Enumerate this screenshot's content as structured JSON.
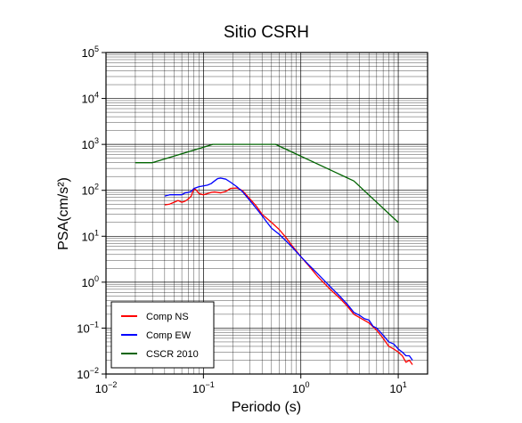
{
  "chart_data": {
    "type": "line",
    "title": "Sitio CSRH",
    "xlabel": "Periodo (s)",
    "ylabel": "PSA(cm/s²)",
    "x_scale": "log",
    "y_scale": "log",
    "xlim": [
      0.01,
      20
    ],
    "ylim": [
      0.01,
      100000
    ],
    "grid": true,
    "legend_position": "bottom-left",
    "x_ticks": [
      {
        "base": "10",
        "exp": "−2"
      },
      {
        "base": "10",
        "exp": "−1"
      },
      {
        "base": "10",
        "exp": "0"
      },
      {
        "base": "10",
        "exp": "1"
      }
    ],
    "y_ticks": [
      {
        "base": "10",
        "exp": "−2"
      },
      {
        "base": "10",
        "exp": "−1"
      },
      {
        "base": "10",
        "exp": "0"
      },
      {
        "base": "10",
        "exp": "1"
      },
      {
        "base": "10",
        "exp": "2"
      },
      {
        "base": "10",
        "exp": "3"
      },
      {
        "base": "10",
        "exp": "4"
      },
      {
        "base": "10",
        "exp": "5"
      }
    ],
    "series": [
      {
        "name": "Comp NS",
        "color": "#ff0000",
        "points": [
          [
            0.04,
            48
          ],
          [
            0.045,
            50
          ],
          [
            0.05,
            55
          ],
          [
            0.055,
            60
          ],
          [
            0.06,
            55
          ],
          [
            0.065,
            58
          ],
          [
            0.07,
            65
          ],
          [
            0.075,
            75
          ],
          [
            0.08,
            110
          ],
          [
            0.085,
            100
          ],
          [
            0.09,
            85
          ],
          [
            0.1,
            80
          ],
          [
            0.11,
            85
          ],
          [
            0.12,
            90
          ],
          [
            0.13,
            92
          ],
          [
            0.15,
            88
          ],
          [
            0.17,
            95
          ],
          [
            0.19,
            110
          ],
          [
            0.22,
            112
          ],
          [
            0.25,
            100
          ],
          [
            0.3,
            65
          ],
          [
            0.35,
            45
          ],
          [
            0.4,
            30
          ],
          [
            0.5,
            20
          ],
          [
            0.6,
            14
          ],
          [
            0.7,
            9.5
          ],
          [
            0.8,
            6.5
          ],
          [
            1.0,
            3.6
          ],
          [
            1.2,
            2.3
          ],
          [
            1.5,
            1.3
          ],
          [
            2.0,
            0.7
          ],
          [
            2.5,
            0.45
          ],
          [
            3.0,
            0.3
          ],
          [
            3.5,
            0.2
          ],
          [
            4.0,
            0.17
          ],
          [
            5.0,
            0.13
          ],
          [
            6.0,
            0.09
          ],
          [
            7.0,
            0.06
          ],
          [
            8.0,
            0.04
          ],
          [
            9.0,
            0.035
          ],
          [
            10.0,
            0.03
          ],
          [
            11.0,
            0.025
          ],
          [
            12.0,
            0.018
          ],
          [
            13.0,
            0.02
          ],
          [
            14.0,
            0.016
          ]
        ]
      },
      {
        "name": "Comp EW",
        "color": "#0000ff",
        "points": [
          [
            0.04,
            75
          ],
          [
            0.045,
            80
          ],
          [
            0.05,
            80
          ],
          [
            0.055,
            80
          ],
          [
            0.06,
            80
          ],
          [
            0.065,
            88
          ],
          [
            0.07,
            90
          ],
          [
            0.075,
            95
          ],
          [
            0.08,
            110
          ],
          [
            0.09,
            120
          ],
          [
            0.1,
            125
          ],
          [
            0.11,
            130
          ],
          [
            0.12,
            140
          ],
          [
            0.13,
            160
          ],
          [
            0.14,
            180
          ],
          [
            0.15,
            185
          ],
          [
            0.17,
            175
          ],
          [
            0.19,
            150
          ],
          [
            0.22,
            120
          ],
          [
            0.25,
            95
          ],
          [
            0.3,
            60
          ],
          [
            0.35,
            40
          ],
          [
            0.4,
            28
          ],
          [
            0.45,
            20
          ],
          [
            0.5,
            15
          ],
          [
            0.6,
            11
          ],
          [
            0.7,
            8
          ],
          [
            0.8,
            6
          ],
          [
            1.0,
            3.6
          ],
          [
            1.2,
            2.4
          ],
          [
            1.5,
            1.5
          ],
          [
            2.0,
            0.8
          ],
          [
            2.5,
            0.5
          ],
          [
            3.0,
            0.33
          ],
          [
            3.5,
            0.22
          ],
          [
            4.0,
            0.19
          ],
          [
            4.5,
            0.16
          ],
          [
            5.0,
            0.15
          ],
          [
            5.5,
            0.11
          ],
          [
            6.0,
            0.1
          ],
          [
            7.0,
            0.07
          ],
          [
            8.0,
            0.05
          ],
          [
            9.0,
            0.045
          ],
          [
            10.0,
            0.035
          ],
          [
            11.0,
            0.03
          ],
          [
            12.0,
            0.025
          ],
          [
            13.0,
            0.025
          ],
          [
            14.0,
            0.02
          ]
        ]
      },
      {
        "name": "CSCR 2010",
        "color": "#006400",
        "points": [
          [
            0.02,
            400
          ],
          [
            0.03,
            400
          ],
          [
            0.125,
            1000
          ],
          [
            0.55,
            1000
          ],
          [
            3.5,
            160
          ],
          [
            10.0,
            20
          ]
        ]
      }
    ]
  }
}
